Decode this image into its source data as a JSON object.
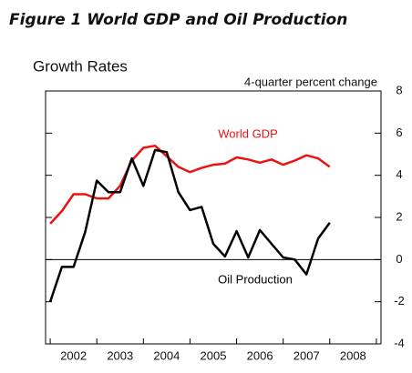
{
  "chart_data": {
    "type": "line",
    "title": "Figure 1  World GDP and Oil Production",
    "subtitle": "Growth Rates",
    "y_label": "4-quarter percent change",
    "x": [
      2002,
      2002.25,
      2002.5,
      2002.75,
      2003,
      2003.25,
      2003.5,
      2003.75,
      2004,
      2004.25,
      2004.5,
      2004.75,
      2005,
      2005.25,
      2005.5,
      2005.75,
      2006,
      2006.25,
      2006.5,
      2006.75,
      2007,
      2007.25,
      2007.5,
      2007.75,
      2008
    ],
    "series": [
      {
        "name": "World GDP",
        "color": "#ee1111",
        "values": [
          1.7,
          2.3,
          3.1,
          3.1,
          2.9,
          2.9,
          3.5,
          4.7,
          5.3,
          5.4,
          4.9,
          4.4,
          4.15,
          4.35,
          4.5,
          4.55,
          4.85,
          4.75,
          4.6,
          4.75,
          4.5,
          4.7,
          4.95,
          4.8,
          4.4
        ]
      },
      {
        "name": "Oil Production",
        "color": "#000000",
        "values": [
          -2,
          -0.35,
          -0.35,
          1.3,
          3.75,
          3.2,
          3.2,
          4.8,
          3.5,
          5.2,
          5.1,
          3.2,
          2.35,
          2.5,
          0.75,
          0.15,
          1.35,
          0.1,
          1.4,
          0.75,
          0.1,
          0,
          -0.7,
          1,
          1.75
        ]
      }
    ],
    "xlim": [
      2001.9,
      2009.1
    ],
    "xticks": [
      {
        "value": 2002.5,
        "label": "2002"
      },
      {
        "value": 2003.5,
        "label": "2003"
      },
      {
        "value": 2004.5,
        "label": "2004"
      },
      {
        "value": 2005.5,
        "label": "2005"
      },
      {
        "value": 2006.5,
        "label": "2006"
      },
      {
        "value": 2007.5,
        "label": "2007"
      },
      {
        "value": 2008.5,
        "label": "2008"
      }
    ],
    "xminorticks": [
      2002,
      2003,
      2004,
      2005,
      2006,
      2007,
      2008,
      2009
    ],
    "ylim": [
      -4,
      8
    ],
    "yticks": [
      -4,
      -2,
      0,
      2,
      4,
      6,
      8
    ],
    "hline": 0,
    "grid": false
  }
}
